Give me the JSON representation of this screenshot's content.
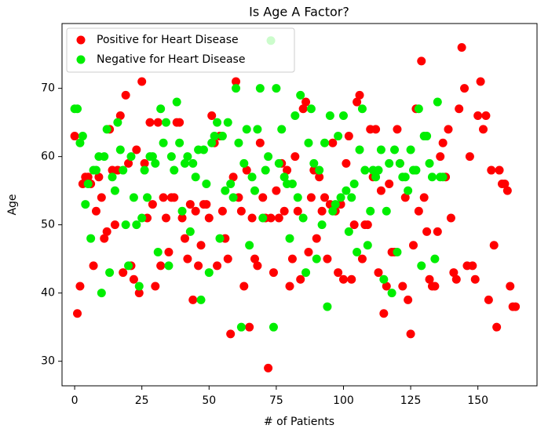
{
  "chart_data": {
    "type": "scatter",
    "title": "Is Age A Factor?",
    "x_label": "# of Patients",
    "y_label": "Age",
    "xlim": [
      -4.7,
      172
    ],
    "ylim": [
      26.4,
      79.5
    ],
    "xticks": [
      0,
      25,
      50,
      75,
      100,
      125,
      150
    ],
    "yticks": [
      30,
      40,
      50,
      60,
      70
    ],
    "legend": "upper left",
    "series": [
      {
        "name": "Positive for Heart Disease",
        "color": "#ff0000",
        "x": [
          0,
          1,
          2,
          3,
          4,
          5,
          6,
          7,
          8,
          9,
          10,
          11,
          12,
          13,
          14,
          15,
          16,
          17,
          18,
          19,
          20,
          21,
          22,
          23,
          24,
          25,
          26,
          27,
          28,
          29,
          30,
          31,
          32,
          33,
          34,
          35,
          36,
          37,
          38,
          39,
          40,
          41,
          42,
          43,
          44,
          45,
          46,
          47,
          48,
          49,
          50,
          51,
          52,
          53,
          54,
          55,
          56,
          57,
          58,
          59,
          60,
          61,
          62,
          63,
          64,
          65,
          66,
          67,
          68,
          69,
          70,
          71,
          72,
          73,
          74,
          75,
          76,
          77,
          78,
          79,
          80,
          81,
          82,
          83,
          84,
          85,
          86,
          87,
          88,
          89,
          90,
          91,
          92,
          93,
          94,
          95,
          96,
          97,
          98,
          99,
          100,
          101,
          102,
          103,
          104,
          105,
          106,
          107,
          108,
          109,
          110,
          111,
          112,
          113,
          114,
          115,
          116,
          117,
          118,
          119,
          120,
          121,
          122,
          123,
          124,
          125,
          126,
          127,
          128,
          129,
          130,
          131,
          132,
          133,
          134,
          135,
          136,
          137,
          138,
          139,
          140,
          141,
          142,
          143,
          144,
          145,
          146,
          147,
          148,
          149,
          150,
          151,
          152,
          153,
          154,
          155,
          156,
          157,
          158,
          159,
          160,
          161,
          162,
          163,
          164
        ],
        "values": [
          63,
          37,
          41,
          56,
          57,
          57,
          56,
          44,
          52,
          57,
          54,
          48,
          49,
          64,
          58,
          50,
          58,
          66,
          43,
          69,
          59,
          44,
          42,
          61,
          40,
          71,
          59,
          51,
          65,
          53,
          41,
          65,
          44,
          54,
          51,
          46,
          54,
          54,
          65,
          65,
          51,
          48,
          45,
          53,
          39,
          52,
          44,
          47,
          53,
          53,
          51,
          66,
          62,
          44,
          63,
          52,
          48,
          45,
          34,
          57,
          71,
          54,
          52,
          41,
          58,
          35,
          51,
          45,
          44,
          62,
          54,
          51,
          29,
          51,
          43,
          55,
          51,
          59,
          52,
          58,
          41,
          45,
          60,
          52,
          42,
          67,
          68,
          46,
          54,
          58,
          48,
          57,
          52,
          54,
          45,
          53,
          62,
          52,
          43,
          53,
          42,
          59,
          63,
          42,
          50,
          68,
          69,
          45,
          50,
          50,
          64,
          57,
          64,
          43,
          55,
          37,
          41,
          56,
          46,
          46,
          64,
          59,
          41,
          54,
          39,
          34,
          47,
          67,
          52,
          74,
          54,
          49,
          42,
          41,
          41,
          49,
          60,
          62,
          57,
          64,
          51,
          43,
          42,
          67,
          76,
          70,
          44,
          60,
          44,
          42,
          66,
          71,
          64,
          66,
          39,
          58,
          47,
          35,
          58,
          56,
          56,
          55,
          41,
          38,
          38
        ]
      },
      {
        "name": "Negative for Heart Disease",
        "color": "#00ee00",
        "x": [
          0,
          1,
          2,
          3,
          4,
          5,
          6,
          7,
          8,
          9,
          10,
          11,
          12,
          13,
          14,
          15,
          16,
          17,
          18,
          19,
          20,
          21,
          22,
          23,
          24,
          25,
          26,
          27,
          28,
          29,
          30,
          31,
          32,
          33,
          34,
          35,
          36,
          37,
          38,
          39,
          40,
          41,
          42,
          43,
          44,
          45,
          46,
          47,
          48,
          49,
          50,
          51,
          52,
          53,
          54,
          55,
          56,
          57,
          58,
          59,
          60,
          61,
          62,
          63,
          64,
          65,
          66,
          67,
          68,
          69,
          70,
          71,
          72,
          73,
          74,
          75,
          76,
          77,
          78,
          79,
          80,
          81,
          82,
          83,
          84,
          85,
          86,
          87,
          88,
          89,
          90,
          91,
          92,
          93,
          94,
          95,
          96,
          97,
          98,
          99,
          100,
          101,
          102,
          103,
          104,
          105,
          106,
          107,
          108,
          109,
          110,
          111,
          112,
          113,
          114,
          115,
          116,
          117,
          118,
          119,
          120,
          121,
          122,
          123,
          124,
          125,
          126,
          127,
          128,
          129,
          130,
          131,
          132,
          133,
          134,
          135,
          136,
          137
        ],
        "values": [
          67,
          67,
          62,
          63,
          53,
          56,
          48,
          58,
          58,
          60,
          40,
          60,
          64,
          43,
          57,
          55,
          65,
          61,
          58,
          50,
          44,
          60,
          54,
          50,
          41,
          51,
          58,
          54,
          60,
          60,
          59,
          46,
          67,
          62,
          65,
          44,
          60,
          58,
          68,
          62,
          52,
          59,
          60,
          49,
          59,
          57,
          61,
          39,
          61,
          56,
          43,
          62,
          63,
          65,
          48,
          63,
          55,
          65,
          56,
          54,
          70,
          62,
          35,
          59,
          64,
          47,
          57,
          55,
          64,
          70,
          51,
          58,
          60,
          77,
          35,
          70,
          59,
          64,
          57,
          56,
          48,
          56,
          66,
          54,
          69,
          51,
          43,
          62,
          67,
          59,
          45,
          58,
          50,
          62,
          38,
          66,
          52,
          53,
          63,
          54,
          66,
          55,
          49,
          54,
          56,
          46,
          61,
          67,
          58,
          47,
          52,
          58,
          57,
          58,
          61,
          42,
          52,
          59,
          40,
          61,
          46,
          59,
          57,
          57,
          55,
          61,
          58,
          58,
          67,
          44,
          63,
          63,
          59,
          57,
          45,
          68,
          57,
          57
        ]
      }
    ]
  }
}
